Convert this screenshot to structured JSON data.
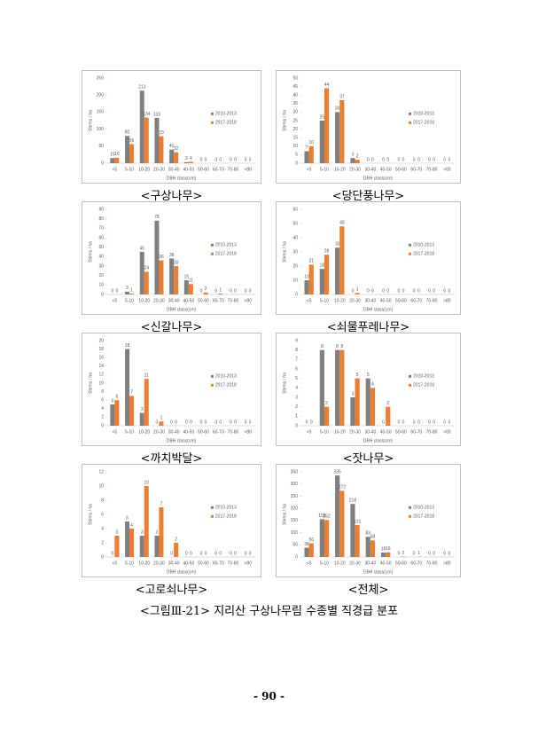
{
  "chart_data": [
    {
      "type": "bar",
      "caption": "<구상나무>",
      "y_label": "Stems / ha",
      "x_label": "DBH class(cm)",
      "categories": [
        "<5",
        "5-10",
        "10-20",
        "20-30",
        "30-40",
        "40-50",
        "50-60",
        "60-70",
        "70-80",
        ">80"
      ],
      "series": [
        {
          "name": "2010-2013",
          "color": "#7f7f7f",
          "values": [
            15,
            80,
            213,
            133,
            40,
            3,
            0,
            0,
            0,
            0
          ]
        },
        {
          "name": "2017-2018",
          "color": "#ed7d31",
          "values": [
            16,
            56,
            134,
            79,
            32,
            4,
            0,
            0,
            0,
            0
          ]
        }
      ],
      "ylim": [
        0,
        250
      ],
      "yticks": [
        0,
        50,
        100,
        150,
        200,
        250
      ],
      "grid": false
    },
    {
      "type": "bar",
      "caption": "<당단풍나무>",
      "y_label": "Stems / ha",
      "x_label": "DBH class(cm)",
      "categories": [
        "<5",
        "5-10",
        "10-20",
        "20-30",
        "30-40",
        "40-50",
        "50-60",
        "60-70",
        "70-80",
        ">80"
      ],
      "series": [
        {
          "name": "2010-2013",
          "color": "#7f7f7f",
          "values": [
            7,
            25,
            30,
            3,
            0,
            0,
            0,
            0,
            0,
            0
          ]
        },
        {
          "name": "2017-2018",
          "color": "#ed7d31",
          "values": [
            10,
            44,
            37,
            2,
            0,
            0,
            0,
            0,
            0,
            0
          ]
        }
      ],
      "ylim": [
        0,
        50
      ],
      "yticks": [
        0,
        5,
        10,
        15,
        20,
        25,
        30,
        35,
        40,
        45,
        50
      ],
      "grid": false
    },
    {
      "type": "bar",
      "caption": "<신갈나무>",
      "y_label": "Stems / ha",
      "x_label": "DBH class(cm)",
      "categories": [
        "<5",
        "5-10",
        "10-20",
        "20-30",
        "30-40",
        "40-50",
        "50-60",
        "60-70",
        "70-80",
        ">80"
      ],
      "series": [
        {
          "name": "2010-2013",
          "color": "#7f7f7f",
          "values": [
            0,
            3,
            45,
            78,
            38,
            15,
            0,
            0,
            0,
            0
          ]
        },
        {
          "name": "2017-2018",
          "color": "#ed7d31",
          "values": [
            0,
            1,
            24,
            36,
            30,
            11,
            2,
            1,
            0,
            0
          ]
        }
      ],
      "ylim": [
        0,
        90
      ],
      "yticks": [
        0,
        10,
        20,
        30,
        40,
        50,
        60,
        70,
        80,
        90
      ],
      "grid": false
    },
    {
      "type": "bar",
      "caption": "<쇠물푸레나무>",
      "y_label": "Stems / ha",
      "x_label": "DBH class(cm)",
      "categories": [
        "<5",
        "5-10",
        "10-20",
        "20-30",
        "30-40",
        "40-50",
        "50-60",
        "60-70",
        "70-80",
        ">80"
      ],
      "series": [
        {
          "name": "2010-2013",
          "color": "#7f7f7f",
          "values": [
            10,
            18,
            33,
            0,
            0,
            0,
            0,
            0,
            0,
            0
          ]
        },
        {
          "name": "2017-2018",
          "color": "#ed7d31",
          "values": [
            21,
            28,
            48,
            1,
            0,
            0,
            0,
            0,
            0,
            0
          ]
        }
      ],
      "ylim": [
        0,
        60
      ],
      "yticks": [
        0,
        10,
        20,
        30,
        40,
        50,
        60
      ],
      "grid": false
    },
    {
      "type": "bar",
      "caption": "<까치박달>",
      "y_label": "Stems / ha",
      "x_label": "DBH class(cm)",
      "categories": [
        "<5",
        "5-10",
        "10-20",
        "20-30",
        "30-40",
        "40-50",
        "50-60",
        "60-70",
        "70-80",
        ">80"
      ],
      "series": [
        {
          "name": "2010-2013",
          "color": "#7f7f7f",
          "values": [
            5,
            18,
            3,
            0,
            0,
            0,
            0,
            0,
            0,
            0
          ]
        },
        {
          "name": "2017-2018",
          "color": "#ed7d31",
          "values": [
            6,
            7,
            11,
            1,
            0,
            0,
            0,
            0,
            0,
            0
          ]
        }
      ],
      "ylim": [
        0,
        20
      ],
      "yticks": [
        0,
        2,
        4,
        6,
        8,
        10,
        12,
        14,
        16,
        18,
        20
      ],
      "grid": false
    },
    {
      "type": "bar",
      "caption": "<잣나무>",
      "y_label": "Stems / ha",
      "x_label": "DBH class(cm)",
      "categories": [
        "<5",
        "5-10",
        "10-20",
        "20-30",
        "30-40",
        "40-50",
        "50-60",
        "60-70",
        "70-80",
        ">80"
      ],
      "series": [
        {
          "name": "2010-2013",
          "color": "#7f7f7f",
          "values": [
            0,
            8,
            8,
            3,
            5,
            0,
            0,
            0,
            0,
            0
          ]
        },
        {
          "name": "2017-2018",
          "color": "#ed7d31",
          "values": [
            0,
            2,
            8,
            5,
            4,
            2,
            0,
            0,
            0,
            0
          ]
        }
      ],
      "ylim": [
        0,
        9
      ],
      "yticks": [
        0,
        1,
        2,
        3,
        4,
        5,
        6,
        7,
        8,
        9
      ],
      "grid": false
    },
    {
      "type": "bar",
      "caption": "<고로쇠나무>",
      "y_label": "Stems / ha",
      "x_label": "DBH class(cm)",
      "categories": [
        "<5",
        "5-10",
        "10-20",
        "20-30",
        "30-40",
        "40-50",
        "50-60",
        "60-70",
        "70-80",
        ">80"
      ],
      "series": [
        {
          "name": "2010-2013",
          "color": "#7f7f7f",
          "values": [
            0,
            5,
            3,
            3,
            0,
            0,
            0,
            0,
            0,
            0
          ]
        },
        {
          "name": "2017-2018",
          "color": "#ed7d31",
          "values": [
            3,
            4,
            10,
            7,
            2,
            0,
            0,
            0,
            0,
            0
          ]
        }
      ],
      "ylim": [
        0,
        12
      ],
      "yticks": [
        0,
        2,
        4,
        6,
        8,
        10,
        12
      ],
      "grid": false
    },
    {
      "type": "bar",
      "caption": "<전체>",
      "y_label": "Stems / ha",
      "x_label": "DBH class(cm)",
      "categories": [
        "<5",
        "5-10",
        "10-20",
        "20-30",
        "30-40",
        "40-50",
        "50-60",
        "60-70",
        "70-80",
        ">80"
      ],
      "series": [
        {
          "name": "2010-2013",
          "color": "#7f7f7f",
          "values": [
            38,
            155,
            335,
            218,
            83,
            18,
            0,
            0,
            0,
            0
          ]
        },
        {
          "name": "2017-2018",
          "color": "#ed7d31",
          "values": [
            56,
            152,
            272,
            131,
            68,
            19,
            2,
            1,
            0,
            0
          ]
        }
      ],
      "ylim": [
        0,
        350
      ],
      "yticks": [
        0,
        50,
        100,
        150,
        200,
        250,
        300,
        350
      ],
      "grid": false
    }
  ],
  "figure_caption": "<그림Ⅲ-21> 지리산 구상나무림 수종별 직경급 분포",
  "page_number": "- 90 -"
}
